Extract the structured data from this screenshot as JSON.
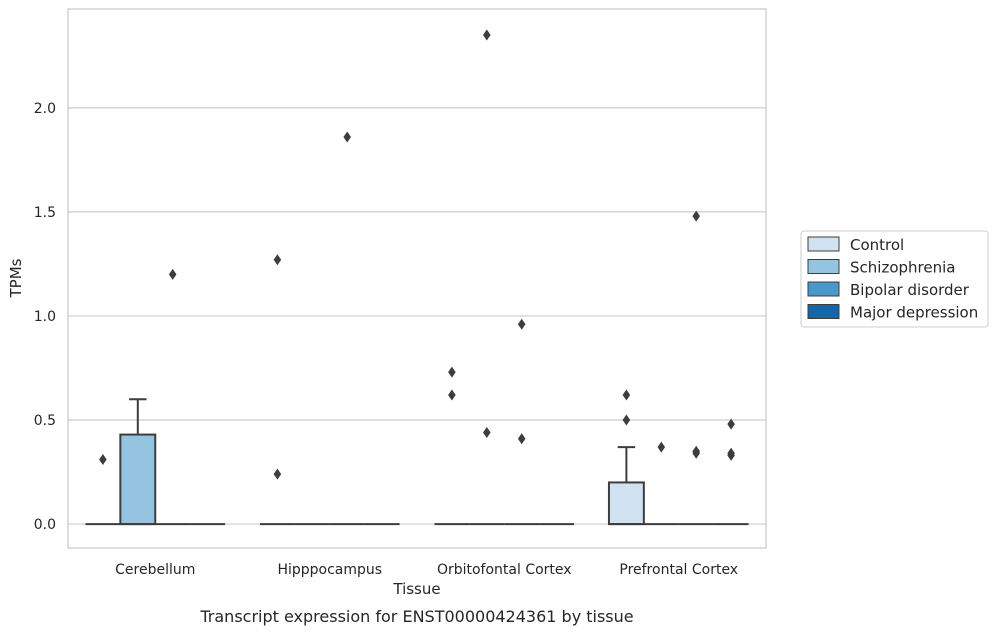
{
  "chart_data": {
    "type": "box",
    "xlabel": "Tissue",
    "ylabel": "TPMs",
    "caption": "Transcript expression for ENST00000424361 by tissue",
    "ylim": [
      -0.115,
      2.475
    ],
    "yticks": [
      "0.0",
      "0.5",
      "1.0",
      "1.5",
      "2.0"
    ],
    "ytick_values": [
      0.0,
      0.5,
      1.0,
      1.5,
      2.0
    ],
    "grid": "horizontal",
    "legend_position": "right",
    "categories": [
      "Cerebellum",
      "Hipppocampus",
      "Orbitofontal Cortex",
      "Prefrontal Cortex"
    ],
    "series": [
      {
        "name": "Control",
        "color": "#d0e1f2",
        "boxes": [
          {
            "q1": 0,
            "median": 0,
            "q3": 0,
            "whisker_low": 0,
            "whisker_high": 0,
            "outliers": [
              0.31
            ]
          },
          {
            "q1": 0,
            "median": 0,
            "q3": 0,
            "whisker_low": 0,
            "whisker_high": 0,
            "outliers": [
              0.24,
              1.27
            ]
          },
          {
            "q1": 0,
            "median": 0,
            "q3": 0,
            "whisker_low": 0,
            "whisker_high": 0,
            "outliers": [
              0.62,
              0.73
            ]
          },
          {
            "q1": 0,
            "median": 0,
            "q3": 0.2,
            "whisker_low": 0,
            "whisker_high": 0.37,
            "outliers": [
              0.5,
              0.62
            ]
          }
        ]
      },
      {
        "name": "Schizophrenia",
        "color": "#94c4df",
        "boxes": [
          {
            "q1": 0,
            "median": 0,
            "q3": 0.43,
            "whisker_low": 0,
            "whisker_high": 0.6,
            "outliers": []
          },
          {
            "q1": 0,
            "median": 0,
            "q3": 0,
            "whisker_low": 0,
            "whisker_high": 0,
            "outliers": []
          },
          {
            "q1": 0,
            "median": 0,
            "q3": 0,
            "whisker_low": 0,
            "whisker_high": 0,
            "outliers": [
              0.44,
              2.35
            ]
          },
          {
            "q1": 0,
            "median": 0,
            "q3": 0,
            "whisker_low": 0,
            "whisker_high": 0,
            "outliers": [
              0.37
            ]
          }
        ]
      },
      {
        "name": "Bipolar disorder",
        "color": "#4a98c9",
        "boxes": [
          {
            "q1": 0,
            "median": 0,
            "q3": 0,
            "whisker_low": 0,
            "whisker_high": 0,
            "outliers": [
              1.2
            ]
          },
          {
            "q1": 0,
            "median": 0,
            "q3": 0,
            "whisker_low": 0,
            "whisker_high": 0,
            "outliers": [
              1.86
            ]
          },
          {
            "q1": 0,
            "median": 0,
            "q3": 0,
            "whisker_low": 0,
            "whisker_high": 0,
            "outliers": [
              0.41,
              0.96
            ]
          },
          {
            "q1": 0,
            "median": 0,
            "q3": 0,
            "whisker_low": 0,
            "whisker_high": 0,
            "outliers": [
              0.34,
              0.35,
              1.48
            ]
          }
        ]
      },
      {
        "name": "Major depression",
        "color": "#1764ab",
        "boxes": [
          {
            "q1": 0,
            "median": 0,
            "q3": 0,
            "whisker_low": 0,
            "whisker_high": 0,
            "outliers": []
          },
          {
            "q1": 0,
            "median": 0,
            "q3": 0,
            "whisker_low": 0,
            "whisker_high": 0,
            "outliers": []
          },
          {
            "q1": 0,
            "median": 0,
            "q3": 0,
            "whisker_low": 0,
            "whisker_high": 0,
            "outliers": []
          },
          {
            "q1": 0,
            "median": 0,
            "q3": 0,
            "whisker_low": 0,
            "whisker_high": 0,
            "outliers": [
              0.33,
              0.34,
              0.48
            ]
          }
        ]
      }
    ]
  }
}
